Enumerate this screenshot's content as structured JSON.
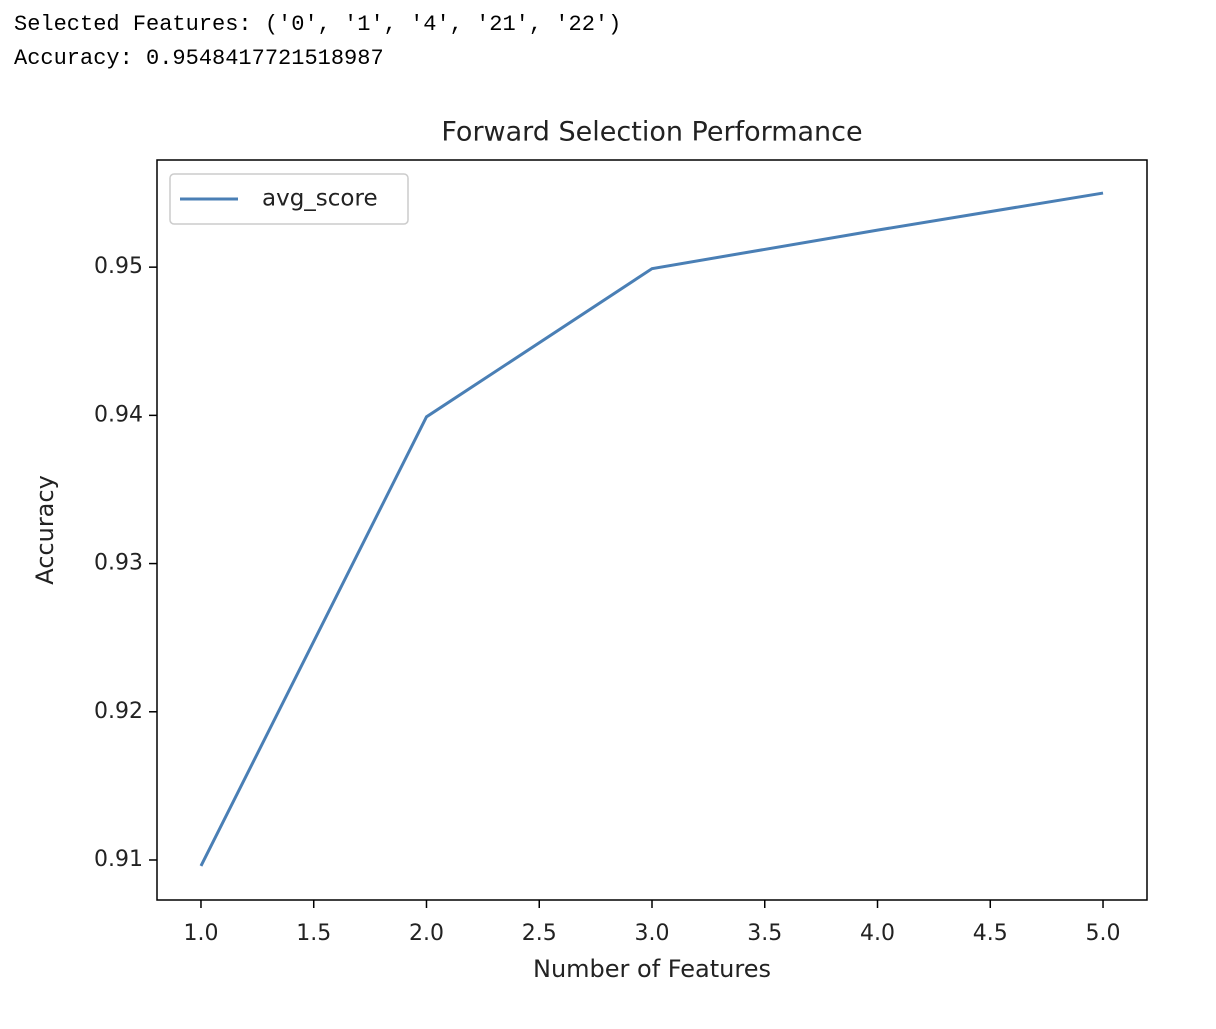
{
  "console": {
    "lines": [
      "Selected Features: ('0', '1', '4', '21', '22')",
      "Accuracy: 0.9548417721518987"
    ]
  },
  "chart_data": {
    "type": "line",
    "title": "Forward Selection Performance",
    "x_label": "Number of Features",
    "y_label": "Accuracy",
    "x": [
      1,
      2,
      3,
      4,
      5
    ],
    "series": [
      {
        "name": "avg_score",
        "color": "#4a7fb5",
        "values": [
          0.9096,
          0.9399,
          0.9499,
          0.9525,
          0.955
        ]
      }
    ],
    "xlim": [
      0.805,
      5.195
    ],
    "xticks": [
      {
        "value": 1,
        "label": "1.0"
      },
      {
        "value": 1.5,
        "label": "1.5"
      },
      {
        "value": 2,
        "label": "2.0"
      },
      {
        "value": 2.5,
        "label": "2.5"
      },
      {
        "value": 3,
        "label": "3.0"
      },
      {
        "value": 3.5,
        "label": "3.5"
      },
      {
        "value": 4,
        "label": "4.0"
      },
      {
        "value": 4.5,
        "label": "4.5"
      },
      {
        "value": 5,
        "label": "5.0"
      }
    ],
    "ylim": [
      0.9073,
      0.95723
    ],
    "yticks": [
      0.91,
      0.92,
      0.93,
      0.94,
      0.95
    ],
    "grid": false,
    "legend": "upper left"
  }
}
